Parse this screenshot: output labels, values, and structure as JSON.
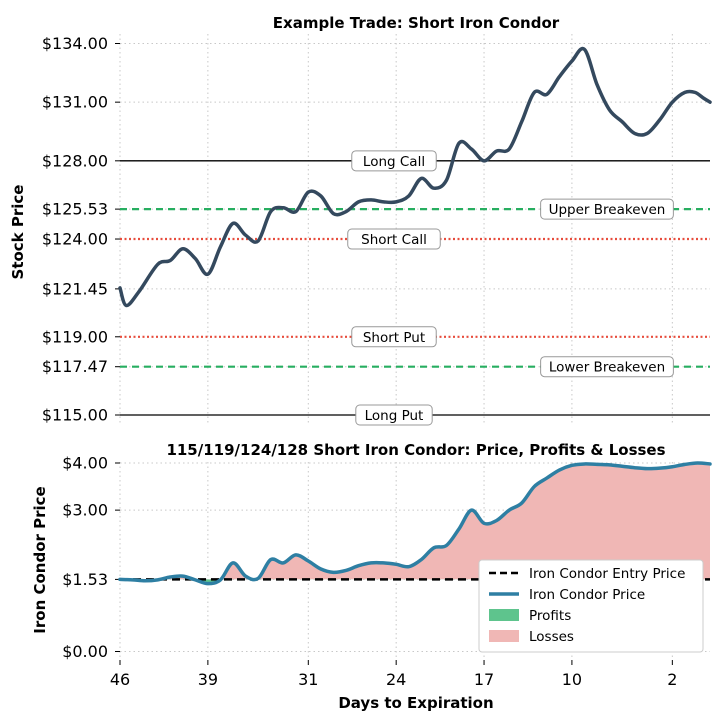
{
  "chart_data": [
    {
      "type": "line",
      "title": "Example Trade: Short Iron Condor",
      "ylabel": "Stock Price",
      "ylim": [
        115,
        135
      ],
      "xlim": [
        46,
        -1
      ],
      "grid": true,
      "yticks": [
        {
          "value": 134.0,
          "label": "$134.00"
        },
        {
          "value": 131.0,
          "label": "$131.00"
        },
        {
          "value": 128.0,
          "label": "$128.00"
        },
        {
          "value": 125.53,
          "label": "$125.53"
        },
        {
          "value": 124.0,
          "label": "$124.00"
        },
        {
          "value": 121.45,
          "label": "$121.45"
        },
        {
          "value": 119.0,
          "label": "$119.00"
        },
        {
          "value": 117.47,
          "label": "$117.47"
        },
        {
          "value": 115.0,
          "label": "$115.00"
        }
      ],
      "levels": [
        {
          "value": 128.0,
          "label": "Long Call",
          "color": "#000000",
          "style": "solid",
          "label_pos": "center"
        },
        {
          "value": 125.53,
          "label": "Upper Breakeven",
          "color": "#27ae60",
          "style": "dashed",
          "label_pos": "right"
        },
        {
          "value": 124.0,
          "label": "Short Call",
          "color": "#e74c3c",
          "style": "dotted",
          "label_pos": "center"
        },
        {
          "value": 119.0,
          "label": "Short Put",
          "color": "#e74c3c",
          "style": "dotted",
          "label_pos": "center"
        },
        {
          "value": 117.47,
          "label": "Lower Breakeven",
          "color": "#27ae60",
          "style": "dashed",
          "label_pos": "right"
        },
        {
          "value": 115.0,
          "label": "Long Put",
          "color": "#000000",
          "style": "solid",
          "label_pos": "center"
        }
      ],
      "series": [
        {
          "color": "#34495e",
          "x": [
            46,
            45.5,
            44.5,
            43,
            42,
            41,
            40,
            39,
            38,
            37,
            36,
            35,
            34,
            33,
            32,
            31,
            30,
            29,
            28,
            27,
            26,
            25,
            24,
            23,
            22,
            21,
            20,
            19,
            18,
            17,
            16,
            15,
            14,
            13,
            12,
            11,
            10,
            9,
            8,
            7,
            6,
            5,
            4,
            3,
            2,
            1,
            0.2,
            -0.5,
            -1
          ],
          "y": [
            121.5,
            120.6,
            121.3,
            122.7,
            122.9,
            123.5,
            123.0,
            122.2,
            123.6,
            124.8,
            124.2,
            123.9,
            125.4,
            125.6,
            125.4,
            126.4,
            126.2,
            125.3,
            125.4,
            125.9,
            126.0,
            125.9,
            125.9,
            126.2,
            127.1,
            126.6,
            127.0,
            128.9,
            128.6,
            128.0,
            128.5,
            128.6,
            130.0,
            131.5,
            131.4,
            132.3,
            133.1,
            133.7,
            131.9,
            130.6,
            130.0,
            129.4,
            129.4,
            130.1,
            131.0,
            131.5,
            131.5,
            131.2,
            131.0
          ]
        }
      ]
    },
    {
      "type": "area",
      "title": "115/119/124/128 Short Iron Condor: Price, Profits & Losses",
      "xlabel": "Days to Expiration",
      "ylabel": "Iron Condor Price",
      "ylim": [
        0,
        4
      ],
      "xlim": [
        46,
        -1
      ],
      "grid": true,
      "xticks": [
        {
          "value": 46,
          "label": "46"
        },
        {
          "value": 39,
          "label": "39"
        },
        {
          "value": 31,
          "label": "31"
        },
        {
          "value": 24,
          "label": "24"
        },
        {
          "value": 17,
          "label": "17"
        },
        {
          "value": 10,
          "label": "10"
        },
        {
          "value": 2,
          "label": "2"
        }
      ],
      "yticks": [
        {
          "value": 4.0,
          "label": "$4.00"
        },
        {
          "value": 3.0,
          "label": "$3.00"
        },
        {
          "value": 1.53,
          "label": "$1.53"
        },
        {
          "value": 0.0,
          "label": "$0.00"
        }
      ],
      "entry_price": 1.53,
      "series": [
        {
          "name": "Iron Condor Price",
          "color": "#2e7fa3",
          "x": [
            46,
            45,
            44,
            43,
            42,
            41,
            40,
            39,
            38,
            37,
            36,
            35,
            34,
            33,
            32,
            31,
            30,
            29,
            28,
            27,
            26,
            25,
            24,
            23,
            22,
            21,
            20,
            19,
            18,
            17,
            16,
            15,
            14,
            13,
            12,
            11,
            10,
            9,
            8,
            7,
            6,
            5,
            4,
            3,
            2,
            1,
            0,
            -1
          ],
          "y": [
            1.53,
            1.52,
            1.5,
            1.52,
            1.58,
            1.6,
            1.52,
            1.44,
            1.52,
            1.88,
            1.6,
            1.55,
            1.95,
            1.88,
            2.05,
            1.92,
            1.75,
            1.68,
            1.72,
            1.82,
            1.88,
            1.88,
            1.85,
            1.8,
            1.95,
            2.2,
            2.25,
            2.6,
            3.0,
            2.72,
            2.78,
            3.0,
            3.15,
            3.5,
            3.68,
            3.85,
            3.95,
            3.98,
            3.97,
            3.96,
            3.93,
            3.9,
            3.88,
            3.89,
            3.92,
            3.97,
            4.0,
            3.98
          ]
        }
      ],
      "legend": {
        "position": "lower-right",
        "entries": [
          {
            "label": "Iron Condor Entry Price",
            "color": "#000000",
            "kind": "dashed-line"
          },
          {
            "label": "Iron Condor Price",
            "color": "#2e7fa3",
            "kind": "line"
          },
          {
            "label": "Profits",
            "color": "#5ec48d",
            "kind": "patch"
          },
          {
            "label": "Losses",
            "color": "#f0b7b5",
            "kind": "patch"
          }
        ]
      }
    }
  ]
}
